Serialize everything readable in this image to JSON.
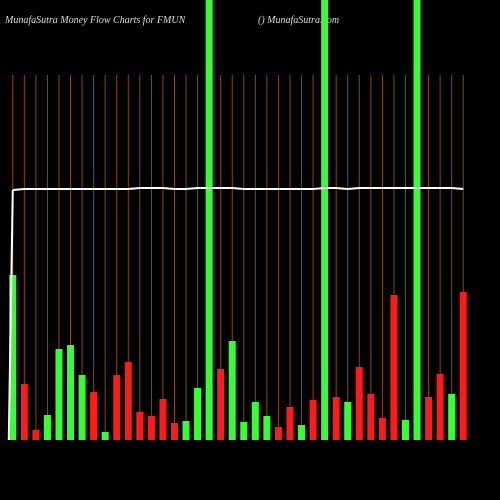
{
  "chart_data": {
    "type": "bar",
    "title": "MunafaSutra  Money Flow  Charts for FMUN",
    "subtitle": "() MunafaSutra.com",
    "categories": [
      null,
      null,
      null,
      null,
      null,
      null,
      null,
      null,
      null,
      null,
      null,
      null,
      null,
      null,
      null,
      null,
      null,
      null,
      null,
      null,
      null,
      null,
      null,
      null,
      null,
      null,
      null,
      null,
      null,
      null,
      null,
      null,
      null,
      null,
      null,
      null,
      null,
      null,
      null,
      null
    ],
    "values": [
      165,
      56,
      10,
      25,
      91,
      95,
      65,
      48,
      8,
      65,
      78,
      28,
      24,
      41,
      17,
      19,
      52,
      440,
      71,
      99,
      18,
      38,
      24,
      13,
      33,
      15,
      40,
      440,
      43,
      38,
      73,
      46,
      22,
      145,
      20,
      440,
      43,
      66,
      46,
      148
    ],
    "colors": [
      "#33ff33",
      "#ff1a1a",
      "#ff1a1a",
      "#33ff33",
      "#33ff33",
      "#33ff33",
      "#33ff33",
      "#ff1a1a",
      "#33ff33",
      "#ff1a1a",
      "#ff1a1a",
      "#ff1a1a",
      "#ff1a1a",
      "#ff1a1a",
      "#ff1a1a",
      "#33ff33",
      "#33ff33",
      "#33ff33",
      "#ff1a1a",
      "#33ff33",
      "#33ff33",
      "#33ff33",
      "#33ff33",
      "#ff1a1a",
      "#ff1a1a",
      "#33ff33",
      "#ff1a1a",
      "#33ff33",
      "#ff1a1a",
      "#33ff33",
      "#ff1a1a",
      "#ff1a1a",
      "#ff1a1a",
      "#ff1a1a",
      "#33ff33",
      "#33ff33",
      "#ff1a1a",
      "#ff1a1a",
      "#33ff33",
      "#ff1a1a"
    ],
    "line": {
      "color": "#ffffff",
      "values": [
        250,
        251,
        251,
        251,
        251,
        251,
        251,
        251,
        251,
        251,
        251,
        252,
        252,
        252,
        251,
        251,
        252,
        252,
        252,
        252,
        251,
        251,
        251,
        251,
        251,
        251,
        251,
        252,
        252,
        251,
        252,
        252,
        252,
        252,
        252,
        252,
        252,
        252,
        252,
        251
      ]
    },
    "ylim": [
      0,
      440
    ],
    "grid": true,
    "grid_color": "#8b4a00"
  }
}
